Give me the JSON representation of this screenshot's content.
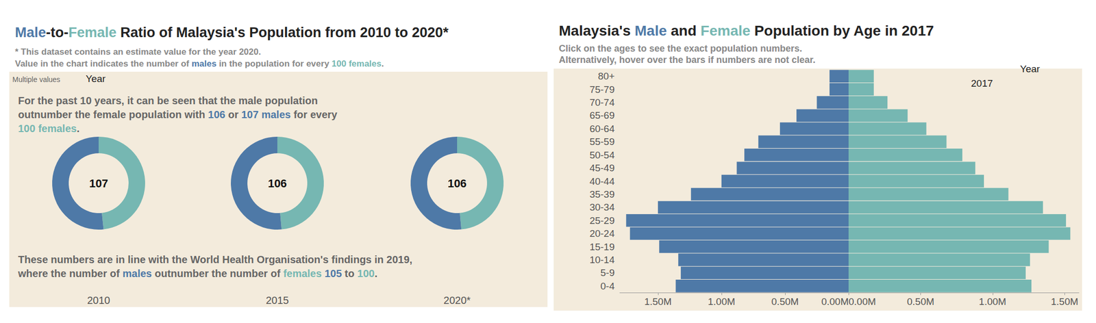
{
  "chart_data": [
    {
      "type": "pie",
      "title": "Male-to-Female Ratio of Malaysia's Population from 2010 to 2020*",
      "subtitle": [
        [
          {
            "text": "* This dataset contains an estimate value for the year "
          },
          {
            "text": "2020.",
            "style": "bold"
          }
        ],
        [
          {
            "text": "Value in the chart indicates the number of "
          },
          {
            "text": "males",
            "style": "male"
          },
          {
            "text": " in the population for every "
          },
          {
            "text": "100 females",
            "style": "female"
          },
          {
            "text": "."
          }
        ]
      ],
      "filter_label": "Year",
      "filter_value": "Multiple values",
      "annotations": [
        [
          [
            {
              "text": "For the past 10 years, it can be seen that the male population"
            }
          ],
          [
            {
              "text": "outnumber the female population with "
            },
            {
              "text": "106",
              "style": "male"
            },
            {
              "text": " or "
            },
            {
              "text": "107 males",
              "style": "male"
            },
            {
              "text": " for every"
            }
          ],
          [
            {
              "text": "100 females",
              "style": "female"
            },
            {
              "text": "."
            }
          ]
        ],
        [
          [
            {
              "text": "These numbers are in line with the World Health Organisation's findings in 2019,"
            }
          ],
          [
            {
              "text": "where the number of "
            },
            {
              "text": "males",
              "style": "male"
            },
            {
              "text": " outnumber the number of "
            },
            {
              "text": "females",
              "style": "female"
            },
            {
              "text": " "
            },
            {
              "text": "105",
              "style": "male"
            },
            {
              "text": " to "
            },
            {
              "text": "100",
              "style": "female"
            },
            {
              "text": "."
            }
          ]
        ]
      ],
      "categories": [
        "2010",
        "2015",
        "2020*"
      ],
      "series": [
        {
          "name": "Male",
          "color": "#4e79a7",
          "values": [
            107,
            106,
            106
          ],
          "data_labels": true
        },
        {
          "name": "Female",
          "color": "#76b7b2",
          "values": [
            100,
            100,
            100
          ]
        }
      ]
    },
    {
      "type": "bar",
      "orientation": "horizontal",
      "title": "Malaysia's Male and Female Population by Age in 2017",
      "subtitle": [
        "Click on the ages to see the exact population numbers.",
        "Alternatively, hover over the bars if numbers are not clear."
      ],
      "filter_label": "Year",
      "filter_value": "2017",
      "grid": false,
      "categories": [
        "0-4",
        "5-9",
        "10-14",
        "15-19",
        "20-24",
        "25-29",
        "30-34",
        "35-39",
        "40-44",
        "45-49",
        "50-54",
        "55-59",
        "60-64",
        "65-69",
        "70-74",
        "75-79",
        "80+"
      ],
      "series": [
        {
          "name": "Male",
          "color": "#4e79a7",
          "values": [
            1360000,
            1320000,
            1340000,
            1490000,
            1720000,
            1750000,
            1500000,
            1240000,
            1000000,
            880000,
            820000,
            710000,
            540000,
            410000,
            250000,
            150000,
            150000
          ],
          "xlim": [
            0,
            1800000
          ],
          "xticks": [
            {
              "value": 0,
              "label": "0.00M"
            },
            {
              "value": 500000,
              "label": "0.50M"
            },
            {
              "value": 1000000,
              "label": "1.00M"
            },
            {
              "value": 1500000,
              "label": "1.50M"
            }
          ]
        },
        {
          "name": "Female",
          "color": "#76b7b2",
          "values": [
            1270000,
            1230000,
            1260000,
            1390000,
            1540000,
            1510000,
            1350000,
            1110000,
            940000,
            880000,
            790000,
            680000,
            540000,
            410000,
            270000,
            175000,
            175000
          ],
          "xlim": [
            0,
            1600000
          ],
          "xticks": [
            {
              "value": 0,
              "label": "0.00M"
            },
            {
              "value": 500000,
              "label": "0.50M"
            },
            {
              "value": 1000000,
              "label": "1.00M"
            },
            {
              "value": 1500000,
              "label": "1.50M"
            }
          ]
        }
      ]
    }
  ]
}
